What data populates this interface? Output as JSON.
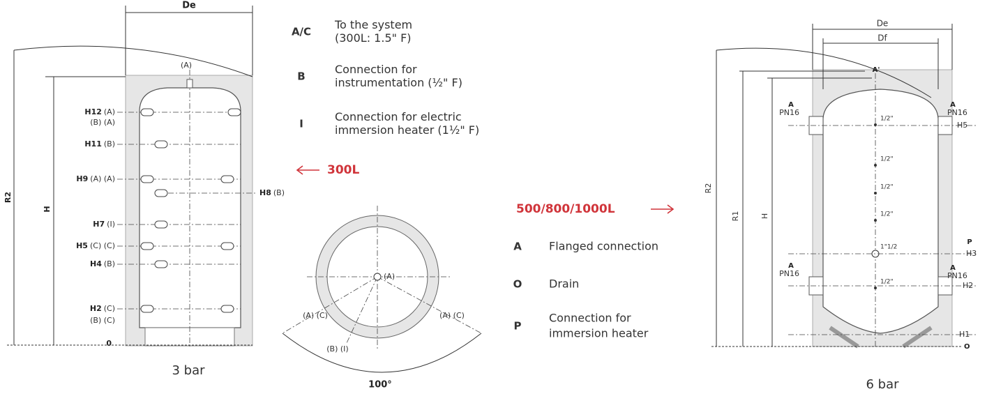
{
  "left_tank": {
    "width_label": "De",
    "height_labels": [
      "R2",
      "H"
    ],
    "top_label": "(A)",
    "levels": [
      {
        "label": "H12",
        "conn": "(A)"
      },
      {
        "conn": "(B) (A)"
      },
      {
        "label": "H11",
        "conn": "(B)"
      },
      {
        "label": "H9",
        "conn": "(A) (A)"
      },
      {
        "label": "H8",
        "conn": "(B)"
      },
      {
        "label": "H7",
        "conn": "(I)"
      },
      {
        "label": "H5",
        "conn": "(C) (C)"
      },
      {
        "label": "H4",
        "conn": "(B)"
      },
      {
        "label": "H2",
        "conn": "(C)"
      },
      {
        "conn": "(B) (C)"
      }
    ],
    "base_label": "0",
    "caption": "3 bar"
  },
  "legend_300": {
    "items": [
      {
        "code": "A/C",
        "lines": [
          "To the system",
          "(300L: 1.5\" F)"
        ]
      },
      {
        "code": "B",
        "lines": [
          "Connection for",
          "instrumentation (½\" F)"
        ]
      },
      {
        "code": "I",
        "lines": [
          "Connection for electric",
          "immersion heater (1½\" F)"
        ]
      }
    ],
    "arrow_label": "300L"
  },
  "top_view": {
    "center": "(A)",
    "left": "(A) (C)",
    "right": "(A) (C)",
    "bottom": "(B) (I)",
    "angle": "100°"
  },
  "legend_500": {
    "arrow_label": "500/800/1000L",
    "items": [
      {
        "code": "A",
        "lines": [
          "Flanged connection"
        ]
      },
      {
        "code": "O",
        "lines": [
          "Drain"
        ]
      },
      {
        "code": "P",
        "lines": [
          "Connection for",
          "immersion heater"
        ]
      }
    ]
  },
  "right_tank": {
    "outer_width": "De",
    "inner_width": "Df",
    "top_label": "A'",
    "height_labels": [
      "R2",
      "R1",
      "H"
    ],
    "flanges": [
      {
        "code": "A",
        "rating": "PN16"
      },
      {
        "code": "A",
        "rating": "PN16"
      },
      {
        "code": "A",
        "rating": "PN16"
      },
      {
        "code": "A",
        "rating": "PN16"
      }
    ],
    "levels": [
      "H5",
      "H3",
      "H2",
      "H1"
    ],
    "heater_code": "P",
    "drain_code": "O",
    "sockets": [
      "1/2\"",
      "1/2\"",
      "1/2\"",
      "1/2\"",
      "1\"1/2",
      "1/2\""
    ],
    "caption": "6 bar"
  }
}
